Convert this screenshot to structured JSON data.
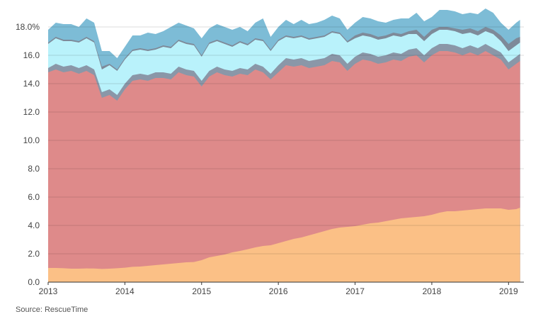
{
  "source": "Source: RescueTime",
  "chart_data": {
    "type": "area",
    "stacked": true,
    "title": "",
    "xlabel": "",
    "ylabel": "",
    "xlim": [
      2013.0,
      2019.2
    ],
    "ylim": [
      0,
      18.9
    ],
    "grid": true,
    "legend": "none",
    "x_ticks": [
      2013,
      2014,
      2015,
      2016,
      2017,
      2018,
      2019
    ],
    "x_tick_labels": [
      "2013",
      "2014",
      "2015",
      "2016",
      "2017",
      "2018",
      "2019"
    ],
    "y_ticks": [
      0,
      2,
      4,
      6,
      8,
      10,
      12,
      14,
      16,
      18
    ],
    "y_tick_labels": [
      "0.0",
      "2.0",
      "4.0",
      "6.0",
      "8.0",
      "10.0",
      "12.0",
      "14.0",
      "16.0",
      "18.0%"
    ],
    "series_totals": {
      "x": [
        2013.0,
        2013.1,
        2013.2,
        2013.3,
        2013.4,
        2013.5,
        2013.6,
        2013.7,
        2013.8,
        2013.9,
        2014.0,
        2014.1,
        2014.2,
        2014.3,
        2014.4,
        2014.5,
        2014.6,
        2014.7,
        2014.8,
        2014.9,
        2015.0,
        2015.1,
        2015.2,
        2015.3,
        2015.4,
        2015.5,
        2015.6,
        2015.7,
        2015.8,
        2015.9,
        2016.0,
        2016.1,
        2016.2,
        2016.3,
        2016.4,
        2016.5,
        2016.6,
        2016.7,
        2016.8,
        2016.9,
        2017.0,
        2017.1,
        2017.2,
        2017.3,
        2017.4,
        2017.5,
        2017.6,
        2017.7,
        2017.8,
        2017.9,
        2018.0,
        2018.1,
        2018.2,
        2018.3,
        2018.4,
        2018.5,
        2018.6,
        2018.7,
        2018.8,
        2018.9,
        2019.0,
        2019.1,
        2019.15
      ],
      "base": [
        1.0,
        1.0,
        0.98,
        0.95,
        0.95,
        0.97,
        0.96,
        0.93,
        0.95,
        0.98,
        1.02,
        1.08,
        1.1,
        1.15,
        1.2,
        1.25,
        1.3,
        1.35,
        1.4,
        1.42,
        1.55,
        1.75,
        1.85,
        1.95,
        2.1,
        2.2,
        2.32,
        2.45,
        2.55,
        2.6,
        2.75,
        2.9,
        3.05,
        3.15,
        3.3,
        3.45,
        3.6,
        3.75,
        3.85,
        3.9,
        3.95,
        4.05,
        4.15,
        4.2,
        4.3,
        4.4,
        4.5,
        4.55,
        4.6,
        4.65,
        4.75,
        4.9,
        5.0,
        5.0,
        5.05,
        5.1,
        5.15,
        5.2,
        5.2,
        5.2,
        5.1,
        5.15,
        5.25
      ],
      "red_top": [
        14.8,
        15.0,
        14.8,
        14.9,
        14.7,
        14.9,
        14.6,
        13.0,
        13.2,
        12.8,
        13.6,
        14.2,
        14.3,
        14.2,
        14.4,
        14.4,
        14.3,
        14.8,
        14.6,
        14.5,
        13.8,
        14.5,
        14.8,
        14.6,
        14.5,
        14.7,
        14.6,
        15.0,
        14.8,
        14.3,
        14.8,
        15.3,
        15.2,
        15.3,
        15.1,
        15.2,
        15.3,
        15.6,
        15.5,
        14.9,
        15.4,
        15.7,
        15.6,
        15.4,
        15.5,
        15.7,
        15.6,
        15.9,
        16.0,
        15.5,
        16.0,
        16.3,
        16.3,
        16.2,
        16.0,
        16.2,
        16.0,
        16.3,
        16.0,
        15.7,
        15.0,
        15.4,
        15.6
      ],
      "grey1_top": [
        15.1,
        15.4,
        15.2,
        15.3,
        15.1,
        15.3,
        15.0,
        13.4,
        13.6,
        13.2,
        14.0,
        14.6,
        14.7,
        14.6,
        14.8,
        14.8,
        14.7,
        15.2,
        15.0,
        14.9,
        14.2,
        14.9,
        15.2,
        15.0,
        14.9,
        15.1,
        15.0,
        15.4,
        15.2,
        14.7,
        15.3,
        15.8,
        15.7,
        15.8,
        15.6,
        15.7,
        15.8,
        16.1,
        16.0,
        15.4,
        15.9,
        16.2,
        16.1,
        15.9,
        16.0,
        16.2,
        16.1,
        16.4,
        16.5,
        16.0,
        16.5,
        16.8,
        16.8,
        16.7,
        16.5,
        16.7,
        16.5,
        16.8,
        16.5,
        16.2,
        15.5,
        15.9,
        16.1
      ],
      "cyan_top": [
        16.8,
        17.2,
        17.0,
        17.0,
        16.9,
        17.2,
        16.9,
        15.0,
        15.3,
        14.9,
        15.7,
        16.3,
        16.4,
        16.3,
        16.4,
        16.6,
        16.5,
        17.0,
        16.8,
        16.7,
        15.9,
        16.8,
        17.0,
        16.8,
        16.6,
        16.9,
        16.7,
        17.1,
        17.0,
        16.3,
        17.0,
        17.3,
        17.2,
        17.3,
        17.1,
        17.2,
        17.3,
        17.6,
        17.5,
        16.9,
        17.2,
        17.4,
        17.3,
        17.1,
        17.2,
        17.4,
        17.3,
        17.5,
        17.5,
        17.0,
        17.5,
        17.8,
        17.8,
        17.7,
        17.5,
        17.6,
        17.4,
        17.7,
        17.5,
        17.0,
        16.3,
        16.7,
        16.9
      ],
      "grey2_top": [
        16.9,
        17.3,
        17.1,
        17.1,
        17.0,
        17.3,
        17.0,
        15.2,
        15.4,
        15.0,
        15.8,
        16.4,
        16.5,
        16.4,
        16.5,
        16.7,
        16.6,
        17.1,
        16.9,
        16.8,
        16.0,
        16.9,
        17.1,
        16.9,
        16.7,
        17.0,
        16.8,
        17.2,
        17.1,
        16.4,
        17.1,
        17.4,
        17.3,
        17.4,
        17.2,
        17.3,
        17.4,
        17.7,
        17.6,
        17.0,
        17.4,
        17.6,
        17.5,
        17.3,
        17.4,
        17.6,
        17.5,
        17.7,
        17.8,
        17.3,
        17.8,
        18.0,
        18.0,
        17.9,
        17.8,
        17.9,
        17.7,
        18.0,
        17.8,
        17.4,
        16.8,
        17.2,
        17.3
      ],
      "blue_top": [
        17.8,
        18.3,
        18.2,
        18.2,
        18.0,
        18.6,
        18.3,
        16.3,
        16.3,
        15.8,
        16.6,
        17.4,
        17.4,
        17.6,
        17.5,
        17.7,
        18.0,
        18.3,
        18.1,
        17.9,
        17.2,
        17.9,
        18.2,
        18.0,
        17.8,
        18.0,
        17.7,
        18.3,
        18.6,
        17.3,
        18.0,
        18.5,
        18.2,
        18.5,
        18.2,
        18.3,
        18.5,
        18.8,
        18.6,
        17.8,
        18.3,
        18.7,
        18.6,
        18.4,
        18.3,
        18.5,
        18.6,
        18.6,
        19.0,
        18.4,
        18.7,
        19.2,
        19.2,
        19.1,
        18.9,
        19.0,
        18.9,
        19.3,
        19.0,
        18.3,
        17.8,
        18.3,
        18.5
      ]
    },
    "layers": [
      {
        "key": "base",
        "color": "#FBC086"
      },
      {
        "key": "red_top",
        "color": "#DE8A8A"
      },
      {
        "key": "grey1_top",
        "color": "#8A97A8"
      },
      {
        "key": "cyan_top",
        "color": "#B9F2FB"
      },
      {
        "key": "grey2_top",
        "color": "#7E8A99"
      },
      {
        "key": "blue_top",
        "color": "#7DBCD6"
      }
    ]
  }
}
